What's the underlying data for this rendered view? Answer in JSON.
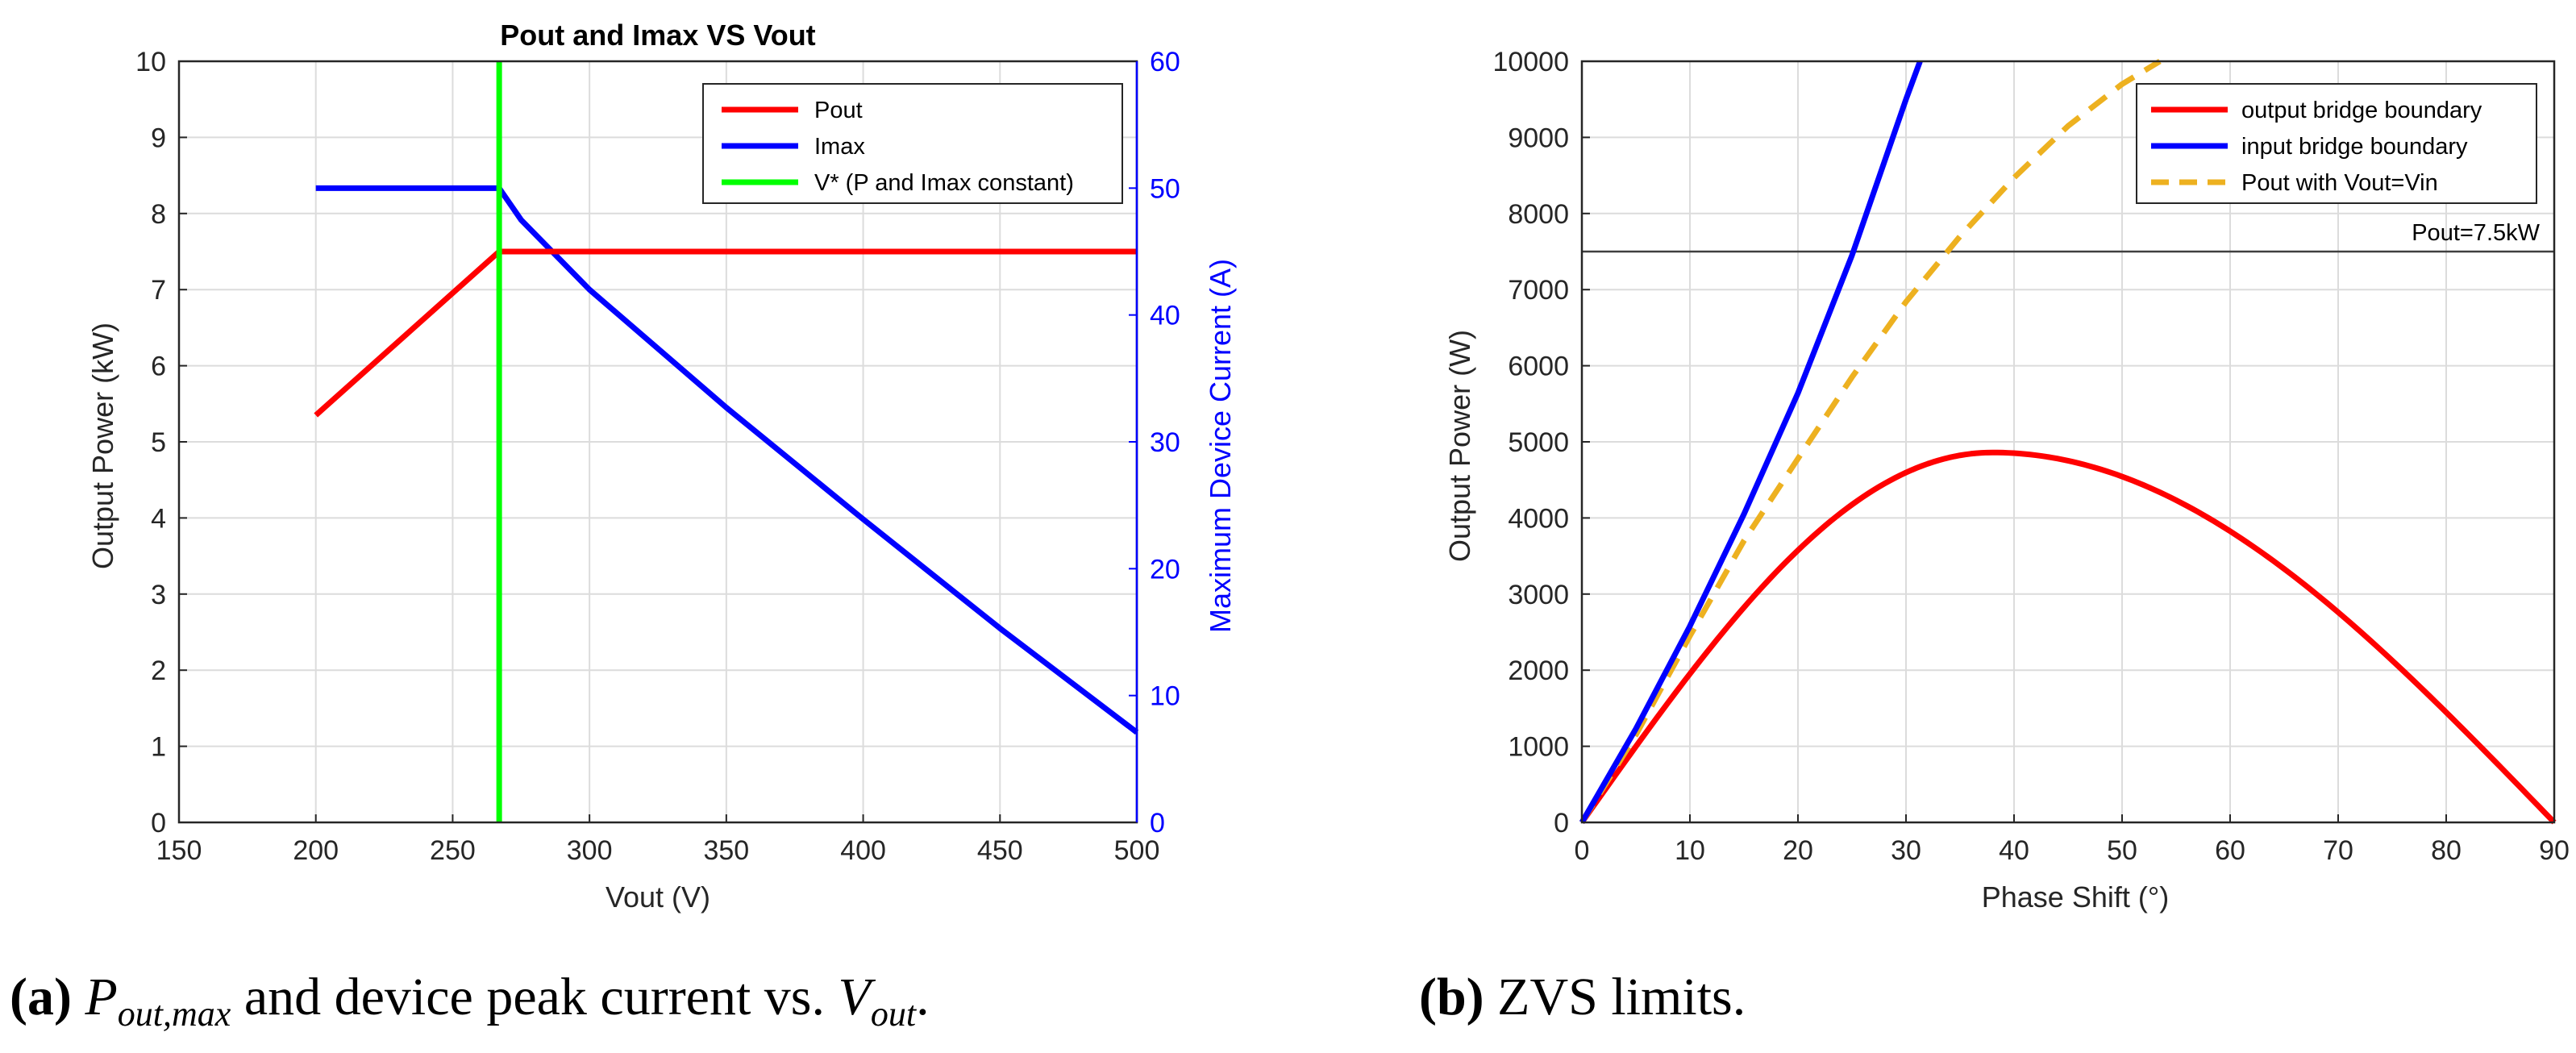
{
  "chart_data": [
    {
      "type": "line",
      "title": "Pout and Imax VS Vout",
      "xlabel": "Vout (V)",
      "ylabel": "Output Power (kW)",
      "y2label": "Maximum Device Current (A)",
      "xlim": [
        150,
        500
      ],
      "ylim": [
        0,
        10
      ],
      "y2lim": [
        0,
        60
      ],
      "xticks": [
        "150",
        "200",
        "250",
        "300",
        "350",
        "400",
        "450",
        "500"
      ],
      "yticks": [
        "0",
        "1",
        "2",
        "3",
        "4",
        "5",
        "6",
        "7",
        "8",
        "9",
        "10"
      ],
      "y2ticks": [
        "0",
        "10",
        "20",
        "30",
        "40",
        "50",
        "60"
      ],
      "legend": [
        "Pout",
        "Imax",
        "V* (P and Imax constant)"
      ],
      "legend_location": "top-right",
      "colors": {
        "pout": "#ff0000",
        "imax": "#0000ff",
        "vstar": "#00ff00",
        "axis2": "#0000ff"
      },
      "series": [
        {
          "name": "Pout",
          "axis": "left",
          "x": [
            200,
            267,
            500
          ],
          "y": [
            5.35,
            7.5,
            7.5
          ]
        },
        {
          "name": "Imax",
          "axis": "right",
          "x": [
            200,
            267,
            275,
            300,
            350,
            400,
            450,
            500
          ],
          "y": [
            50,
            50,
            47.5,
            42.0,
            32.7,
            23.9,
            15.3,
            7.1
          ]
        },
        {
          "name": "V* (P and Imax constant)",
          "axis": "vertical",
          "x": [
            267
          ]
        }
      ]
    },
    {
      "type": "line",
      "title": "",
      "xlabel": "Phase Shift (°)",
      "ylabel": "Output Power (W)",
      "xlim": [
        0,
        90
      ],
      "ylim": [
        0,
        10000
      ],
      "xticks": [
        "0",
        "10",
        "20",
        "30",
        "40",
        "50",
        "60",
        "70",
        "80",
        "90"
      ],
      "yticks": [
        "0",
        "1000",
        "2000",
        "3000",
        "4000",
        "5000",
        "6000",
        "7000",
        "8000",
        "9000",
        "10000"
      ],
      "legend": [
        "output bridge boundary",
        "input bridge boundary",
        "Pout with Vout=Vin"
      ],
      "legend_location": "top-right",
      "annotation": {
        "text": "Pout=7.5kW",
        "y": 7500
      },
      "colors": {
        "output": "#ff0000",
        "input": "#0000ff",
        "pout": "#edb120",
        "refline": "#404040"
      },
      "series": [
        {
          "name": "output bridge boundary",
          "peak": 4860,
          "peak_at": 38,
          "end_at": 90
        },
        {
          "name": "input bridge boundary",
          "x": [
            0,
            5,
            10,
            15,
            20,
            25,
            30,
            31.3
          ],
          "y": [
            0,
            1230,
            2580,
            4050,
            5640,
            7450,
            9500,
            10000
          ]
        },
        {
          "name": "Pout with Vout=Vin",
          "style": "dashed",
          "x": [
            0,
            5,
            10,
            15,
            20,
            25,
            30,
            35,
            40,
            45,
            50,
            53.5
          ],
          "y": [
            0,
            1150,
            2450,
            3700,
            4780,
            5850,
            6840,
            7700,
            8470,
            9150,
            9700,
            10000
          ]
        }
      ]
    }
  ],
  "captions": [
    {
      "label": "(a)",
      "pre": " ",
      "p": "P",
      "p_sub": "out,max",
      "mid": " and device peak current vs. ",
      "v": "V",
      "v_sub": "out",
      "post": "."
    },
    {
      "label": "(b)",
      "text": " ZVS limits."
    }
  ]
}
